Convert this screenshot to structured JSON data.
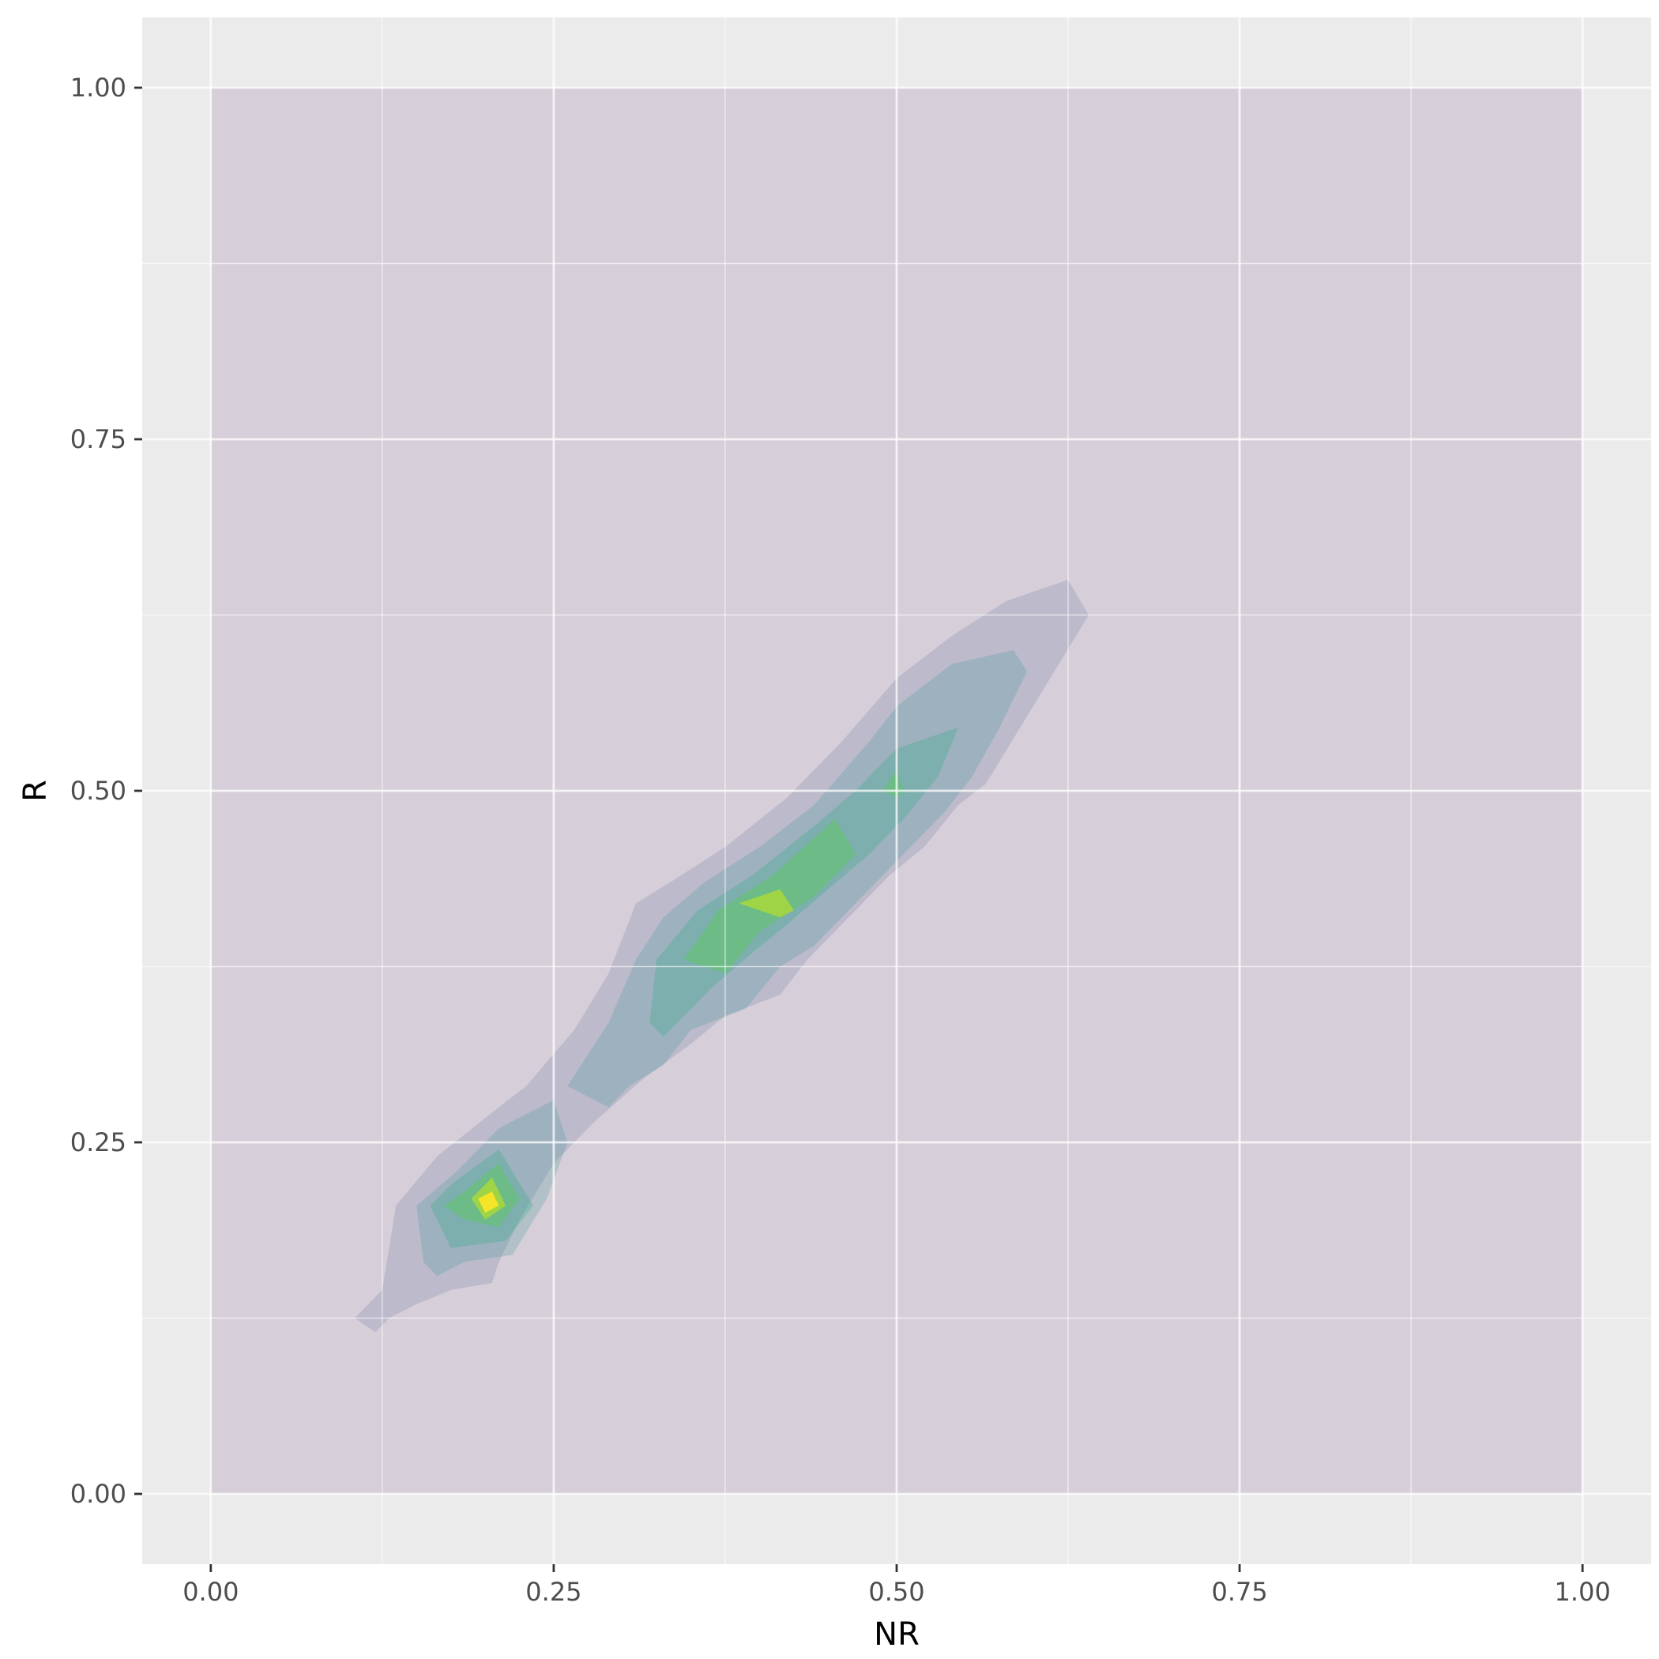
{
  "chart_data": {
    "type": "contour",
    "title": "",
    "xlabel": "NR",
    "ylabel": "R",
    "xlim": [
      -0.05,
      1.05
    ],
    "ylim": [
      -0.05,
      1.05
    ],
    "x_ticks": [
      0.0,
      0.25,
      0.5,
      0.75,
      1.0
    ],
    "x_tick_labels": [
      "0.00",
      "0.25",
      "0.50",
      "0.75",
      "1.00"
    ],
    "y_ticks": [
      0.0,
      0.25,
      0.5,
      0.75,
      1.0
    ],
    "y_tick_labels": [
      "0.00",
      "0.25",
      "0.50",
      "0.75",
      "1.00"
    ],
    "grid": true,
    "legend": "none",
    "levels": [
      {
        "level": 1,
        "color": "#440154",
        "opacity": 0.12,
        "polygons": [
          [
            [
              0,
              0
            ],
            [
              1,
              0
            ],
            [
              1,
              1
            ],
            [
              0,
              1
            ]
          ]
        ]
      },
      {
        "level": 2,
        "color": "#3b528b",
        "opacity": 0.16,
        "polygons": [
          [
            [
              0.105,
              0.125
            ],
            [
              0.125,
              0.145
            ],
            [
              0.135,
              0.205
            ],
            [
              0.165,
              0.24
            ],
            [
              0.21,
              0.275
            ],
            [
              0.23,
              0.29
            ],
            [
              0.265,
              0.33
            ],
            [
              0.29,
              0.37
            ],
            [
              0.31,
              0.42
            ],
            [
              0.335,
              0.435
            ],
            [
              0.375,
              0.46
            ],
            [
              0.42,
              0.495
            ],
            [
              0.46,
              0.535
            ],
            [
              0.5,
              0.58
            ],
            [
              0.54,
              0.61
            ],
            [
              0.58,
              0.635
            ],
            [
              0.625,
              0.65
            ],
            [
              0.64,
              0.625
            ],
            [
              0.615,
              0.585
            ],
            [
              0.59,
              0.545
            ],
            [
              0.565,
              0.505
            ],
            [
              0.545,
              0.49
            ],
            [
              0.52,
              0.46
            ],
            [
              0.495,
              0.44
            ],
            [
              0.465,
              0.41
            ],
            [
              0.435,
              0.38
            ],
            [
              0.415,
              0.355
            ],
            [
              0.375,
              0.34
            ],
            [
              0.35,
              0.32
            ],
            [
              0.315,
              0.295
            ],
            [
              0.28,
              0.265
            ],
            [
              0.25,
              0.235
            ],
            [
              0.225,
              0.195
            ],
            [
              0.21,
              0.165
            ],
            [
              0.205,
              0.15
            ],
            [
              0.175,
              0.145
            ],
            [
              0.15,
              0.135
            ],
            [
              0.13,
              0.125
            ],
            [
              0.12,
              0.115
            ]
          ]
        ]
      },
      {
        "level": 3,
        "color": "#21908c",
        "opacity": 0.2,
        "polygons": [
          [
            [
              0.155,
              0.165
            ],
            [
              0.15,
              0.205
            ],
            [
              0.18,
              0.23
            ],
            [
              0.21,
              0.26
            ],
            [
              0.25,
              0.28
            ],
            [
              0.26,
              0.25
            ],
            [
              0.245,
              0.21
            ],
            [
              0.22,
              0.17
            ],
            [
              0.185,
              0.165
            ],
            [
              0.165,
              0.155
            ]
          ],
          [
            [
              0.26,
              0.29
            ],
            [
              0.29,
              0.335
            ],
            [
              0.31,
              0.38
            ],
            [
              0.33,
              0.41
            ],
            [
              0.36,
              0.435
            ],
            [
              0.4,
              0.46
            ],
            [
              0.44,
              0.49
            ],
            [
              0.48,
              0.535
            ],
            [
              0.5,
              0.56
            ],
            [
              0.54,
              0.59
            ],
            [
              0.585,
              0.6
            ],
            [
              0.595,
              0.585
            ],
            [
              0.575,
              0.545
            ],
            [
              0.555,
              0.51
            ],
            [
              0.535,
              0.485
            ],
            [
              0.505,
              0.455
            ],
            [
              0.47,
              0.42
            ],
            [
              0.44,
              0.39
            ],
            [
              0.415,
              0.375
            ],
            [
              0.39,
              0.345
            ],
            [
              0.35,
              0.33
            ],
            [
              0.33,
              0.305
            ],
            [
              0.305,
              0.29
            ],
            [
              0.29,
              0.275
            ]
          ]
        ]
      },
      {
        "level": 4,
        "color": "#27ad81",
        "opacity": 0.28,
        "polygons": [
          [
            [
              0.16,
              0.205
            ],
            [
              0.175,
              0.22
            ],
            [
              0.21,
              0.245
            ],
            [
              0.235,
              0.205
            ],
            [
              0.215,
              0.18
            ],
            [
              0.175,
              0.175
            ]
          ],
          [
            [
              0.32,
              0.335
            ],
            [
              0.325,
              0.38
            ],
            [
              0.355,
              0.415
            ],
            [
              0.395,
              0.44
            ],
            [
              0.44,
              0.475
            ],
            [
              0.47,
              0.5
            ],
            [
              0.5,
              0.53
            ],
            [
              0.545,
              0.545
            ],
            [
              0.53,
              0.51
            ],
            [
              0.505,
              0.48
            ],
            [
              0.48,
              0.455
            ],
            [
              0.45,
              0.43
            ],
            [
              0.42,
              0.405
            ],
            [
              0.395,
              0.385
            ],
            [
              0.365,
              0.36
            ],
            [
              0.34,
              0.335
            ],
            [
              0.33,
              0.325
            ]
          ]
        ]
      },
      {
        "level": 5,
        "color": "#5ec962",
        "opacity": 0.5,
        "polygons": [
          [
            [
              0.17,
              0.205
            ],
            [
              0.185,
              0.215
            ],
            [
              0.21,
              0.235
            ],
            [
              0.225,
              0.21
            ],
            [
              0.21,
              0.19
            ],
            [
              0.185,
              0.195
            ]
          ],
          [
            [
              0.345,
              0.38
            ],
            [
              0.37,
              0.415
            ],
            [
              0.41,
              0.44
            ],
            [
              0.455,
              0.48
            ],
            [
              0.47,
              0.455
            ],
            [
              0.44,
              0.425
            ],
            [
              0.4,
              0.4
            ],
            [
              0.375,
              0.37
            ]
          ],
          [
            [
              0.49,
              0.5
            ],
            [
              0.5,
              0.515
            ],
            [
              0.505,
              0.5
            ],
            [
              0.5,
              0.495
            ]
          ]
        ]
      },
      {
        "level": 6,
        "color": "#b5de2b",
        "opacity": 0.7,
        "polygons": [
          [
            [
              0.19,
              0.21
            ],
            [
              0.205,
              0.225
            ],
            [
              0.215,
              0.205
            ],
            [
              0.2,
              0.195
            ]
          ],
          [
            [
              0.385,
              0.42
            ],
            [
              0.415,
              0.43
            ],
            [
              0.425,
              0.415
            ],
            [
              0.415,
              0.41
            ]
          ]
        ]
      },
      {
        "level": 7,
        "color": "#fde725",
        "opacity": 0.9,
        "polygons": [
          [
            [
              0.195,
              0.21
            ],
            [
              0.205,
              0.215
            ],
            [
              0.21,
              0.205
            ],
            [
              0.2,
              0.2
            ]
          ]
        ]
      }
    ]
  }
}
